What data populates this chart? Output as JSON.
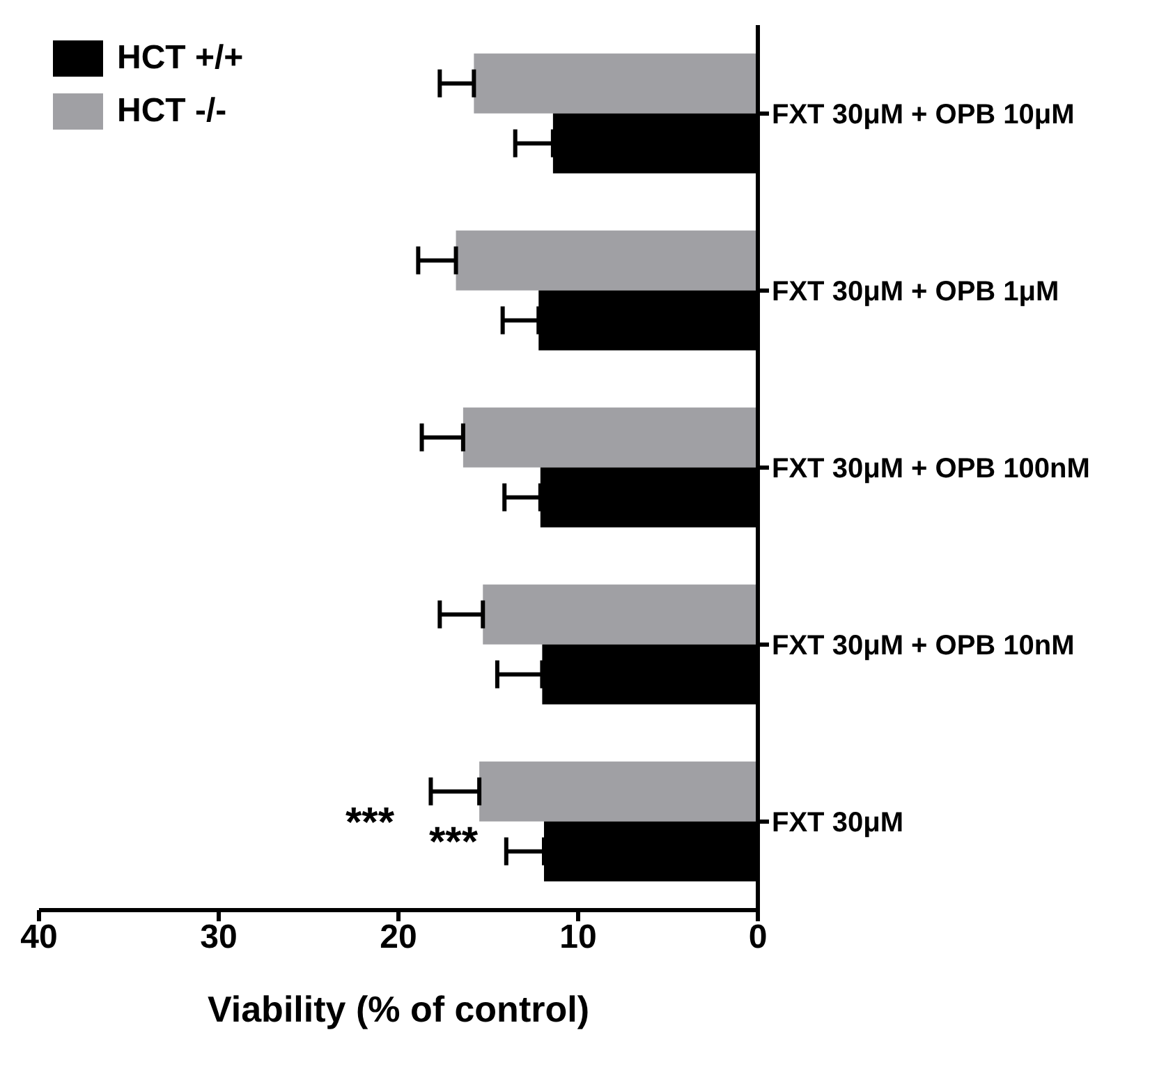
{
  "chart_data": {
    "type": "bar",
    "orientation": "horizontal",
    "xlabel": "Viability (% of control)",
    "categories": [
      "FXT 30μM + OPB 10μM",
      "FXT 30μM + OPB 1μM",
      "FXT 30μM + OPB 100nM",
      "FXT 30μM + OPB 10nM",
      "FXT 30μM"
    ],
    "series": [
      {
        "name": "HCT +/+",
        "color": "#000000",
        "values": [
          11.4,
          12.2,
          12.1,
          12.0,
          11.9
        ],
        "errors": [
          [
            11.4,
            13.5
          ],
          [
            12.2,
            14.2
          ],
          [
            12.1,
            14.1
          ],
          [
            12.0,
            14.5
          ],
          [
            11.9,
            14.0
          ]
        ]
      },
      {
        "name": "HCT -/-",
        "color": "#a0a0a4",
        "values": [
          15.8,
          16.8,
          16.4,
          15.3,
          15.5
        ],
        "errors": [
          [
            15.8,
            17.7
          ],
          [
            16.8,
            18.9
          ],
          [
            16.4,
            18.7
          ],
          [
            15.3,
            17.7
          ],
          [
            15.5,
            18.2
          ]
        ]
      }
    ],
    "xlim": [
      40,
      0
    ],
    "xticks": [
      40,
      30,
      20,
      10,
      0
    ],
    "legend": "top left",
    "annotations": [
      "***",
      "***"
    ]
  }
}
